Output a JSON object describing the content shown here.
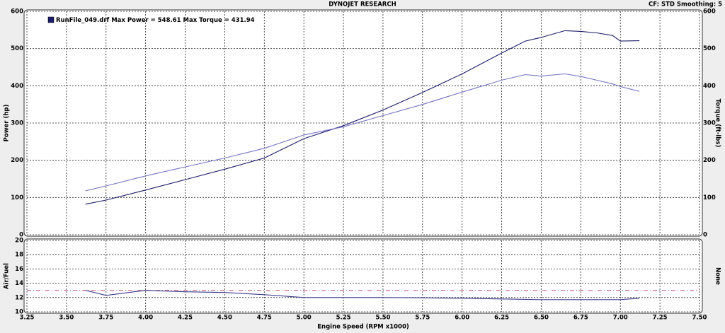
{
  "chart_data": [
    {
      "type": "line",
      "title": "DYNOJET RESEARCH",
      "subtitle": "CF: STD  Smoothing: 5",
      "ylabel": "Power (hp)",
      "y2label": "Torque (ft-lbs)",
      "x": [
        3.62,
        3.75,
        4.0,
        4.25,
        4.5,
        4.75,
        5.0,
        5.25,
        5.5,
        5.75,
        6.0,
        6.25,
        6.4,
        6.5,
        6.65,
        6.75,
        6.85,
        6.95,
        7.0,
        7.12
      ],
      "series": [
        {
          "name": "RunFile_049.drf Max Power = 548.61 Max Torque = 431.94",
          "color": "#1c1c6a",
          "values": [
            82,
            93,
            120,
            148,
            176,
            206,
            258,
            293,
            335,
            382,
            432,
            488,
            520,
            530,
            548,
            546,
            542,
            535,
            520,
            521
          ]
        },
        {
          "color": "#7474c4",
          "axis": "y2",
          "values": [
            118,
            131,
            158,
            182,
            206,
            232,
            268,
            290,
            320,
            350,
            383,
            415,
            430,
            426,
            432,
            425,
            415,
            405,
            398,
            385
          ]
        }
      ],
      "xlim": [
        3.25,
        7.5
      ],
      "xticks": [
        3.25,
        {
          "value": 3.5,
          "label": "3.50"
        },
        3.75,
        {
          "value": 4,
          "label": "4.00"
        },
        4.25,
        {
          "value": 4.5,
          "label": "4.50"
        },
        4.75,
        {
          "value": 5,
          "label": "5.00"
        },
        5.25,
        {
          "value": 5.5,
          "label": "5.50"
        },
        5.75,
        {
          "value": 6,
          "label": "6.00"
        },
        6.25,
        {
          "value": 6.5,
          "label": "6.50"
        },
        6.75,
        {
          "value": 7,
          "label": "7.00"
        },
        7.25,
        {
          "value": 7.5,
          "label": "7.50"
        }
      ],
      "ylim": [
        0,
        600
      ],
      "yticks": [
        0,
        100,
        200,
        300,
        400,
        500,
        600
      ],
      "y2lim": [
        0,
        600
      ],
      "y2ticks": [
        0,
        100,
        200,
        300,
        400,
        500,
        600
      ],
      "grid": true
    },
    {
      "type": "line",
      "ylabel": "Air/Fuel",
      "y2label": "None",
      "xlabel": "Engine Speed (RPM x1000)",
      "x": [
        3.62,
        3.75,
        4.0,
        4.25,
        4.5,
        4.75,
        5.0,
        5.5,
        6.0,
        6.5,
        7.0,
        7.12
      ],
      "series": [
        {
          "color": "#3a3a8a",
          "values": [
            13.0,
            12.3,
            13.0,
            12.8,
            12.7,
            12.4,
            12.0,
            12.0,
            11.9,
            11.7,
            11.7,
            11.9
          ]
        }
      ],
      "hline": 13,
      "hline_color": "#c0506a",
      "xlim": [
        3.25,
        7.5
      ],
      "xticks": [
        3.25,
        {
          "value": 3.5,
          "label": "3.50"
        },
        3.75,
        {
          "value": 4,
          "label": "4.00"
        },
        4.25,
        {
          "value": 4.5,
          "label": "4.50"
        },
        4.75,
        {
          "value": 5,
          "label": "5.00"
        },
        5.25,
        {
          "value": 5.5,
          "label": "5.50"
        },
        5.75,
        {
          "value": 6,
          "label": "6.00"
        },
        6.25,
        {
          "value": 6.5,
          "label": "6.50"
        },
        6.75,
        {
          "value": 7,
          "label": "7.00"
        },
        7.25,
        {
          "value": 7.5,
          "label": "7.50"
        }
      ],
      "ylim": [
        10,
        20
      ],
      "yticks": [
        10,
        12,
        14,
        16,
        18,
        20
      ],
      "grid": true
    }
  ]
}
